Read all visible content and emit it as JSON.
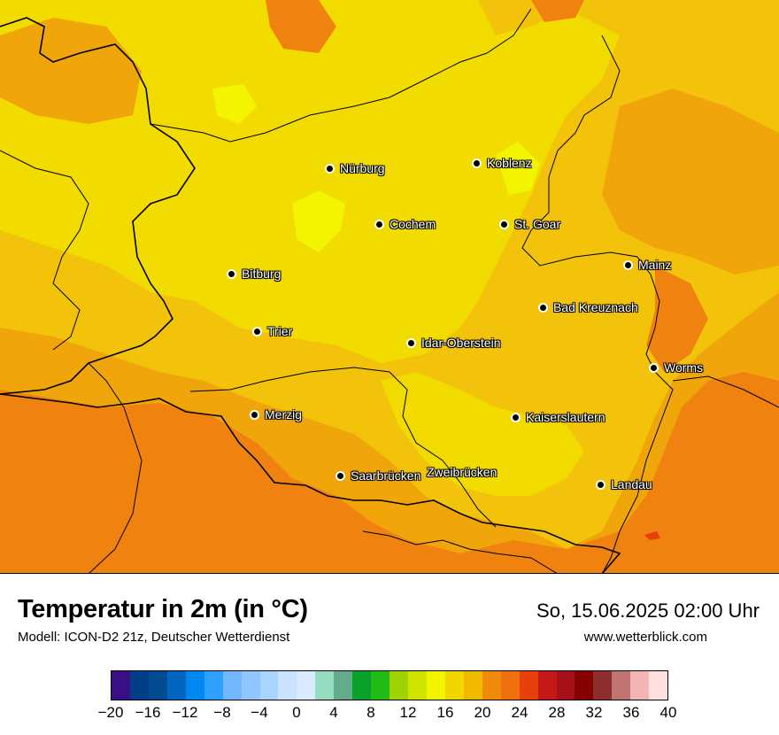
{
  "header": {
    "title": "Temperatur in 2m (in °C)",
    "model": "Modell: ICON-D2 21z, Deutscher Wetterdienst",
    "datetime": "So, 15.06.2025 02:00 Uhr",
    "website": "www.wetterblick.com"
  },
  "cities": [
    {
      "name": "Nürburg"
    },
    {
      "name": "Koblenz"
    },
    {
      "name": "Cochem"
    },
    {
      "name": "St. Goar"
    },
    {
      "name": "Mainz"
    },
    {
      "name": "Bitburg"
    },
    {
      "name": "Bad Kreuznach"
    },
    {
      "name": "Trier"
    },
    {
      "name": "Idar-Oberstein"
    },
    {
      "name": "Worms"
    },
    {
      "name": "Merzig"
    },
    {
      "name": "Kaiserslautern"
    },
    {
      "name": "Saarbrücken"
    },
    {
      "name": "Zweibrücken"
    },
    {
      "name": "Landau"
    }
  ],
  "legend": {
    "tick_labels": [
      "−20",
      "−16",
      "−12",
      "−8",
      "−4",
      "0",
      "4",
      "8",
      "12",
      "16",
      "20",
      "24",
      "28",
      "32",
      "36",
      "40"
    ],
    "colors": [
      "#3a0f86",
      "#003f88",
      "#004a92",
      "#0065bf",
      "#0087f0",
      "#2ea0ff",
      "#73b8ff",
      "#8fc6ff",
      "#a9d4ff",
      "#c8e2ff",
      "#daeaff",
      "#96dcc0",
      "#63ab8a",
      "#0aa12a",
      "#22bb15",
      "#9ed404",
      "#cfe500",
      "#f2f400",
      "#f1d600",
      "#f1b800",
      "#f08a0a",
      "#f07010",
      "#e8400c",
      "#c21818",
      "#a61018",
      "#850000",
      "#8c2e2e",
      "#c07474",
      "#f2b4b4",
      "#ffe0e0"
    ]
  },
  "map": {
    "colors": {
      "dark_orange": "#f0820f",
      "orange": "#f0a50a",
      "yellow_orange": "#f2c30a",
      "yellow": "#f2dc00",
      "bright_yellow": "#f2f400",
      "red": "#e8400c"
    }
  }
}
